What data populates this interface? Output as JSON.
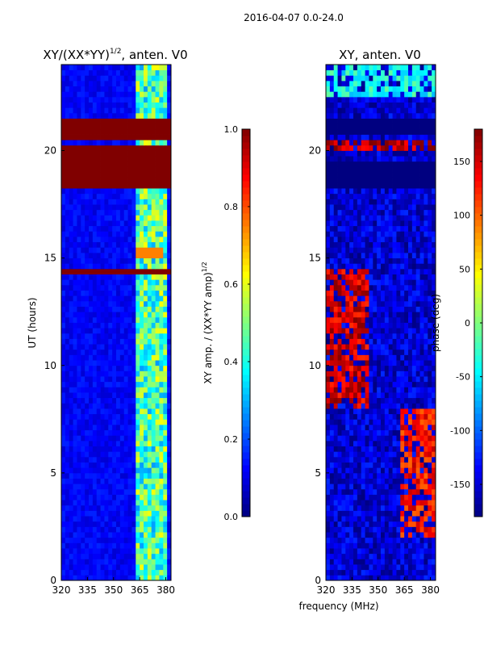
{
  "figure": {
    "suptitle": "2016-04-07 0.0-24.0",
    "shared_xlabel": "frequency (MHz)"
  },
  "chart_data": [
    {
      "type": "heatmap",
      "title": "XY/(XX*YY)¹ᐟ², anten. V0",
      "title_main": "XY/(XX*YY)",
      "title_sup": "1/2",
      "title_tail": ", anten. V0",
      "xlabel": "",
      "ylabel": "UT (hours)",
      "xlim": [
        320,
        383
      ],
      "ylim": [
        0,
        24
      ],
      "xticks": [
        "320",
        "335",
        "350",
        "365",
        "380"
      ],
      "xtick_values": [
        320,
        335,
        350,
        365,
        380
      ],
      "yticks": [
        "0",
        "5",
        "10",
        "15",
        "20"
      ],
      "ytick_values": [
        0,
        5,
        10,
        15,
        20
      ],
      "colorbar": {
        "label_main": "XY amp. / (XX*YY amp)",
        "label_sup": "1/2",
        "range": [
          0.0,
          1.0
        ],
        "ticks": [
          "0.0",
          "0.2",
          "0.4",
          "0.6",
          "0.8",
          "1.0"
        ],
        "tick_values": [
          0.0,
          0.2,
          0.4,
          0.6,
          0.8,
          1.0
        ],
        "colormap": "jet"
      },
      "background_value": 0.12,
      "bright_band_mhz": [
        362,
        380
      ],
      "bright_band_value": 0.45,
      "flagged_blocks_hours": [
        [
          20.6,
          21.5
        ],
        [
          18.2,
          19.4
        ],
        [
          14.3,
          14.5
        ],
        [
          19.5,
          20.3
        ]
      ],
      "flagged_value": 1.0,
      "strong_feature": {
        "ut": 15.2,
        "mhz": [
          362,
          378
        ],
        "value": 0.75
      }
    },
    {
      "type": "heatmap",
      "title": "XY, anten. V0",
      "xlabel": "frequency (MHz)",
      "ylabel": "",
      "xlim": [
        320,
        383
      ],
      "ylim": [
        0,
        24
      ],
      "xticks": [
        "320",
        "335",
        "350",
        "365",
        "380"
      ],
      "xtick_values": [
        320,
        335,
        350,
        365,
        380
      ],
      "yticks": [
        "0",
        "5",
        "10",
        "15",
        "20"
      ],
      "ytick_values": [
        0,
        5,
        10,
        15,
        20
      ],
      "colorbar": {
        "label": "phase (deg)",
        "range": [
          -180,
          180
        ],
        "ticks": [
          "-150",
          "-100",
          "-50",
          "0",
          "50",
          "100",
          "150"
        ],
        "tick_values": [
          -150,
          -100,
          -50,
          0,
          50,
          100,
          150
        ],
        "colormap": "jet"
      },
      "flagged_blocks_hours": [
        [
          18.2,
          19.5
        ],
        [
          20.7,
          21.6
        ]
      ],
      "flagged_value": -180,
      "phase_regions": [
        {
          "ut": [
            8,
            14.5
          ],
          "mhz": [
            320,
            345
          ],
          "phase": 150
        },
        {
          "ut": [
            2,
            8
          ],
          "mhz": [
            362,
            383
          ],
          "phase": 130
        },
        {
          "ut": [
            20,
            20.5
          ],
          "mhz": [
            320,
            383
          ],
          "phase": 160
        },
        {
          "ut": [
            22.5,
            24
          ],
          "mhz": [
            320,
            383
          ],
          "phase": -40
        }
      ]
    }
  ]
}
